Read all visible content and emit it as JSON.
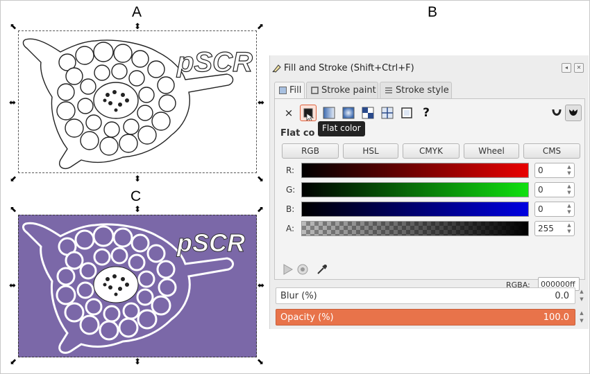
{
  "figure": {
    "labels": {
      "a": "A",
      "b": "B",
      "c": "C"
    },
    "canvas_text": "pSCR",
    "colors": {
      "purple_bg": "#7b68a8",
      "white": "#ffffff"
    }
  },
  "dialog": {
    "title": "Fill and Stroke (Shift+Ctrl+F)",
    "tabs": [
      {
        "label": "Fill",
        "icon": "fill-icon"
      },
      {
        "label": "Stroke paint",
        "icon": "stroke-paint-icon"
      },
      {
        "label": "Stroke style",
        "icon": "stroke-style-icon"
      }
    ],
    "fill_modes": [
      "no-paint-icon",
      "flat-color-icon",
      "linear-gradient-icon",
      "radial-gradient-icon",
      "pattern-icon",
      "swatch-icon",
      "unset-icon",
      "question-mark-icon"
    ],
    "fill_rule_icons": [
      "evenodd-icon",
      "nonzero-icon"
    ],
    "no_paint_glyph": "×",
    "unset_glyph": "?",
    "tooltip": "Flat color",
    "flat_label": "Flat co",
    "color_models": [
      "RGB",
      "HSL",
      "CMYK",
      "Wheel",
      "CMS"
    ],
    "channels": [
      {
        "label": "R:",
        "value": "0",
        "color": "#e80000"
      },
      {
        "label": "G:",
        "value": "0",
        "color": "#10e010"
      },
      {
        "label": "B:",
        "value": "0",
        "color": "#0000e0"
      },
      {
        "label": "A:",
        "value": "255",
        "color": "#000000"
      }
    ],
    "rgba_label": "RGBA:",
    "rgba_value": "000000ff",
    "blur": {
      "label": "Blur (%)",
      "value": "0.0"
    },
    "opacity": {
      "label": "Opacity (%)",
      "value": "100.0"
    },
    "opacity_color": "#e8734a"
  }
}
